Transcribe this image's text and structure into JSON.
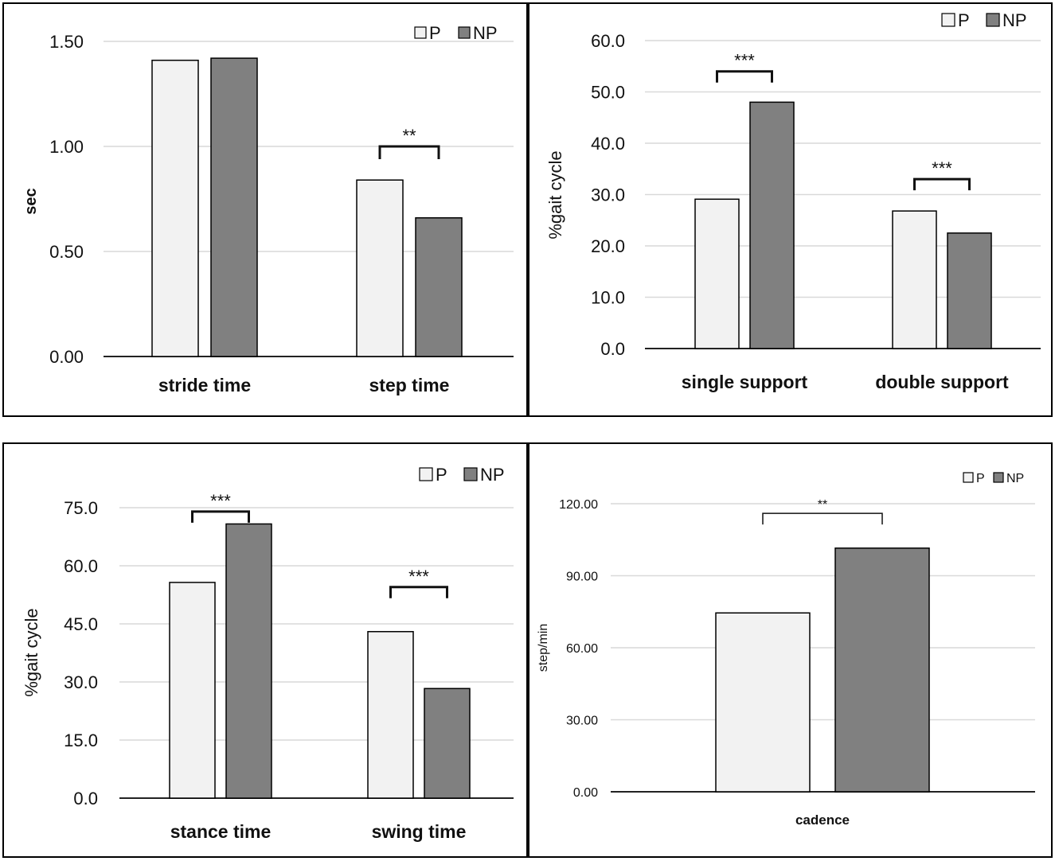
{
  "colors": {
    "P": "#f2f2f2",
    "NP": "#808080",
    "outline": "#000000",
    "grid": "#d9d9d9"
  },
  "chart_data": [
    {
      "type": "bar",
      "categories": [
        "stride time",
        "step time"
      ],
      "series": [
        {
          "name": "P",
          "values": [
            1.41,
            0.84
          ]
        },
        {
          "name": "NP",
          "values": [
            1.42,
            0.66
          ]
        }
      ],
      "yticks": [
        "0.00",
        "0.50",
        "1.00",
        "1.50"
      ],
      "ylim": [
        0,
        1.5
      ],
      "ylabel": "sec",
      "xlabel": "",
      "grid": true,
      "legend": "top-right",
      "significance": [
        {
          "category_index": 1,
          "label": "**",
          "level": 1.0
        }
      ]
    },
    {
      "type": "bar",
      "categories": [
        "single support",
        "double support"
      ],
      "series": [
        {
          "name": "P",
          "values": [
            29.1,
            26.8
          ]
        },
        {
          "name": "NP",
          "values": [
            48.0,
            22.5
          ]
        }
      ],
      "yticks": [
        "0.0",
        "10.0",
        "20.0",
        "30.0",
        "40.0",
        "50.0",
        "60.0"
      ],
      "ylim": [
        0,
        60
      ],
      "ylabel": "%gait cycle",
      "xlabel": "",
      "grid": true,
      "legend": "top-right",
      "significance": [
        {
          "category_index": 0,
          "label": "***",
          "level": 54.0
        },
        {
          "category_index": 1,
          "label": "***",
          "level": 33.0
        }
      ]
    },
    {
      "type": "bar",
      "categories": [
        "stance time",
        "swing time"
      ],
      "series": [
        {
          "name": "P",
          "values": [
            55.7,
            43.0
          ]
        },
        {
          "name": "NP",
          "values": [
            70.8,
            28.3
          ]
        }
      ],
      "yticks": [
        "0.0",
        "15.0",
        "30.0",
        "45.0",
        "60.0",
        "75.0"
      ],
      "ylim": [
        0,
        75
      ],
      "ylabel": "%gait cycle",
      "xlabel": "",
      "grid": true,
      "legend": "top-right",
      "significance": [
        {
          "category_index": 0,
          "label": "***",
          "level": 74.0
        },
        {
          "category_index": 1,
          "label": "***",
          "level": 54.5
        }
      ]
    },
    {
      "type": "bar",
      "categories": [
        "cadence"
      ],
      "series": [
        {
          "name": "P",
          "values": [
            74.5
          ]
        },
        {
          "name": "NP",
          "values": [
            101.5
          ]
        }
      ],
      "yticks": [
        "0.00",
        "30.00",
        "60.00",
        "90.00",
        "120.00"
      ],
      "ylim": [
        0,
        120
      ],
      "ylabel": "step/min",
      "xlabel": "",
      "grid": true,
      "legend": "top-right",
      "significance": [
        {
          "category_index": 0,
          "label": "**",
          "level": 116.0
        }
      ]
    }
  ]
}
